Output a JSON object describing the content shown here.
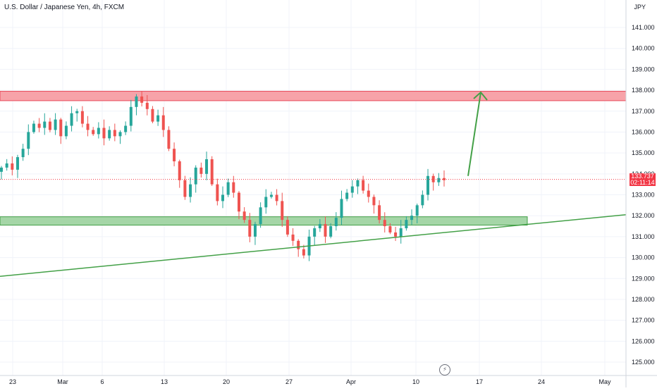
{
  "title": "U.S. Dollar / Japanese Yen, 4h, FXCM",
  "unit": "JPY",
  "colors": {
    "up": "#26a69a",
    "down": "#ef5350",
    "resistance_fill": "#f7a3a9",
    "resistance_stroke": "#e84a5a",
    "support_fill": "#a5d6a7",
    "support_stroke": "#43a047",
    "trend": "#43a047",
    "arrow": "#43a047",
    "current_price": "#f23645",
    "grid": "#f0f3fa",
    "axis_text": "#131722"
  },
  "price_tag": {
    "price": "133.737",
    "countdown": "02:11:14"
  },
  "bolt_icon": "lightning-icon",
  "chart_data": {
    "type": "candlestick",
    "y_axis_ticks": [
      "141.000",
      "140.000",
      "139.000",
      "138.000",
      "137.000",
      "136.000",
      "135.000",
      "134.000",
      "133.000",
      "132.000",
      "131.000",
      "130.000",
      "129.000",
      "128.000",
      "127.000",
      "126.000",
      "125.000"
    ],
    "ylim": [
      124.5,
      141.5
    ],
    "x_axis_ticks": [
      "23",
      "Mar",
      "6",
      "13",
      "20",
      "27",
      "Apr",
      "10",
      "17",
      "24",
      "May"
    ],
    "grid": true,
    "current_price": 133.737,
    "resistance_zone": {
      "low": 137.5,
      "high": 137.95
    },
    "support_zone": {
      "low": 131.55,
      "high": 131.95
    },
    "trendline": {
      "from": {
        "x": "start",
        "price": 129.1
      },
      "to": {
        "x": "end",
        "price": 132.05
      }
    },
    "projection_arrow": {
      "from_price": 133.9,
      "to_price": 137.9
    },
    "price_path": [
      134.3,
      134.5,
      134.2,
      134.8,
      135.2,
      136.0,
      136.4,
      136.2,
      136.5,
      136.1,
      136.6,
      135.8,
      136.3,
      136.9,
      137.0,
      136.4,
      136.1,
      135.9,
      136.2,
      135.7,
      136.1,
      135.8,
      136.0,
      136.3,
      137.2,
      137.7,
      137.4,
      137.1,
      136.5,
      136.8,
      136.1,
      135.2,
      134.6,
      133.7,
      132.9,
      133.5,
      134.3,
      134.0,
      134.7,
      133.5,
      132.7,
      133.0,
      133.6,
      133.1,
      132.2,
      131.8,
      131.0,
      131.6,
      132.4,
      132.9,
      133.0,
      132.7,
      131.8,
      131.1,
      130.8,
      130.4,
      130.1,
      131.0,
      131.4,
      131.6,
      131.0,
      131.5,
      131.9,
      132.8,
      133.1,
      133.4,
      133.7,
      133.2,
      132.9,
      132.5,
      131.8,
      131.5,
      131.2,
      131.0,
      131.4,
      131.8,
      132.0,
      132.5,
      133.0,
      133.9,
      133.6,
      133.8,
      133.7
    ]
  }
}
